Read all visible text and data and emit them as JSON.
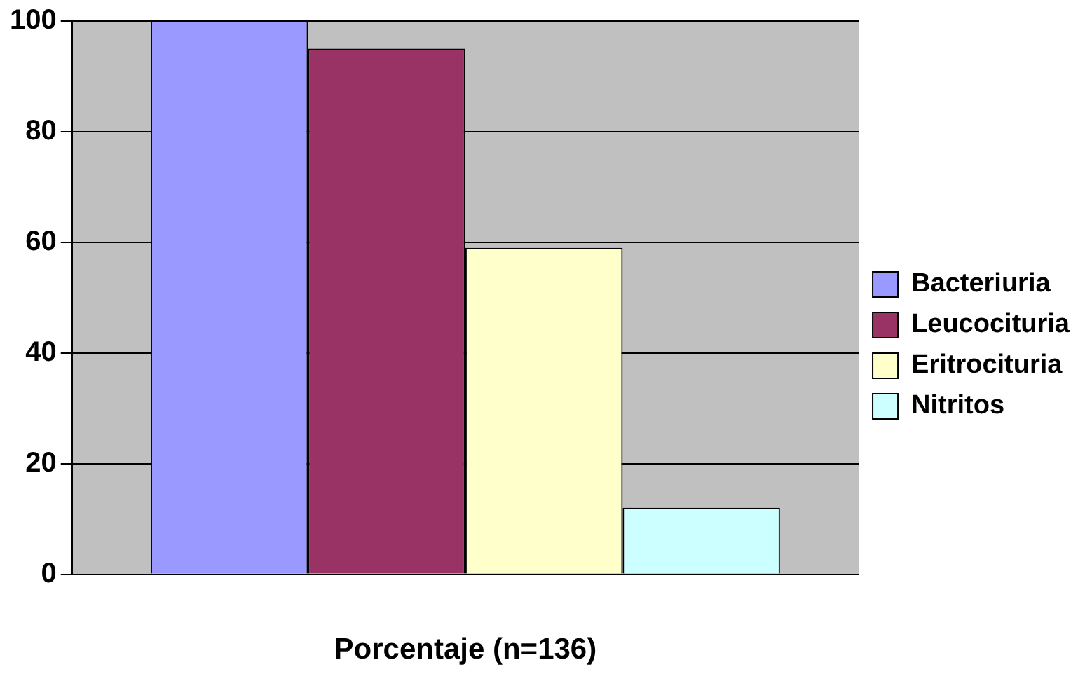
{
  "chart_data": {
    "type": "bar",
    "xlabel": "Porcentaje (n=136)",
    "categories": [
      null
    ],
    "series": [
      {
        "name": "Bacteriuria",
        "color": "#9999ff",
        "values": [
          100
        ]
      },
      {
        "name": "Leucocituria",
        "color": "#993366",
        "values": [
          95
        ]
      },
      {
        "name": "Eritrocituria",
        "color": "#ffffcc",
        "values": [
          59
        ]
      },
      {
        "name": "Nitritos",
        "color": "#ccffff",
        "values": [
          12
        ]
      }
    ],
    "ylim": [
      0,
      100
    ],
    "yticks": [
      0,
      20,
      40,
      60,
      80,
      100
    ],
    "grid": "y",
    "legend": "right"
  }
}
